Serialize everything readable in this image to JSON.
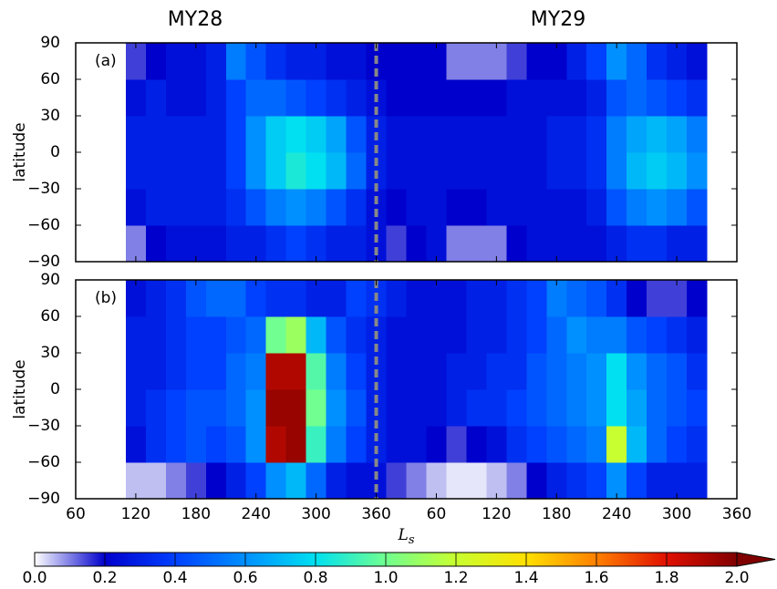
{
  "titles": [
    "MY28",
    "MY29"
  ],
  "chart_data": [
    {
      "type": "heatmap",
      "label": "(a)",
      "ylabel": "latitude",
      "xlim": [
        60,
        720
      ],
      "ylim": [
        -90,
        90
      ],
      "yticks": [
        90,
        60,
        30,
        0,
        {
          "value": -30,
          "label": "−30"
        },
        {
          "value": -60,
          "label": "−60"
        },
        {
          "value": -90,
          "label": "−90"
        }
      ],
      "divider_x": 360,
      "divider_color": "#888888",
      "x_edges": [
        110,
        130,
        150,
        170,
        190,
        210,
        230,
        250,
        270,
        290,
        310,
        330,
        350,
        370,
        390,
        410,
        430,
        450,
        470,
        490,
        510,
        530,
        550,
        570,
        590,
        610,
        630,
        650,
        670,
        690
      ],
      "y_edges": [
        -90,
        -60,
        -30,
        0,
        30,
        60,
        90
      ],
      "z": [
        [
          0.1,
          0.2,
          0.25,
          0.25,
          0.25,
          0.3,
          0.3,
          0.35,
          0.4,
          0.35,
          0.3,
          0.3,
          0.25,
          0.15,
          0.2,
          0.25,
          0.1,
          0.1,
          0.1,
          0.2,
          0.25,
          0.25,
          0.25,
          0.25,
          0.3,
          0.35,
          0.35,
          0.3,
          0.3
        ],
        [
          0.25,
          0.3,
          0.3,
          0.3,
          0.3,
          0.35,
          0.45,
          0.55,
          0.6,
          0.55,
          0.45,
          0.35,
          0.25,
          0.2,
          0.25,
          0.25,
          0.2,
          0.2,
          0.25,
          0.25,
          0.25,
          0.25,
          0.25,
          0.3,
          0.45,
          0.55,
          0.6,
          0.55,
          0.45
        ],
        [
          0.3,
          0.3,
          0.3,
          0.3,
          0.3,
          0.4,
          0.6,
          0.75,
          0.85,
          0.8,
          0.7,
          0.5,
          0.3,
          0.25,
          0.25,
          0.25,
          0.25,
          0.25,
          0.25,
          0.25,
          0.25,
          0.3,
          0.3,
          0.35,
          0.55,
          0.7,
          0.75,
          0.7,
          0.6
        ],
        [
          0.3,
          0.3,
          0.3,
          0.3,
          0.3,
          0.4,
          0.6,
          0.75,
          0.8,
          0.75,
          0.65,
          0.45,
          0.3,
          0.25,
          0.25,
          0.25,
          0.25,
          0.25,
          0.25,
          0.25,
          0.25,
          0.3,
          0.3,
          0.35,
          0.55,
          0.65,
          0.7,
          0.65,
          0.55
        ],
        [
          0.25,
          0.3,
          0.25,
          0.25,
          0.3,
          0.4,
          0.5,
          0.5,
          0.45,
          0.4,
          0.35,
          0.3,
          0.25,
          0.2,
          0.2,
          0.2,
          0.2,
          0.2,
          0.2,
          0.25,
          0.25,
          0.25,
          0.25,
          0.3,
          0.45,
          0.5,
          0.45,
          0.4,
          0.35
        ],
        [
          0.15,
          0.2,
          0.25,
          0.25,
          0.3,
          0.55,
          0.45,
          0.35,
          0.3,
          0.3,
          0.25,
          0.25,
          0.2,
          0.2,
          0.2,
          0.2,
          0.1,
          0.1,
          0.1,
          0.15,
          0.2,
          0.2,
          0.3,
          0.4,
          0.6,
          0.5,
          0.35,
          0.3,
          0.25
        ]
      ]
    },
    {
      "type": "heatmap",
      "label": "(b)",
      "ylabel": "latitude",
      "xlabel": [
        "L",
        "s"
      ],
      "xlim": [
        60,
        720
      ],
      "ylim": [
        -90,
        90
      ],
      "xticks": [
        60,
        120,
        180,
        240,
        300,
        360,
        {
          "value": 420,
          "label": "60"
        },
        {
          "value": 480,
          "label": "120"
        },
        {
          "value": 540,
          "label": "180"
        },
        {
          "value": 600,
          "label": "240"
        },
        {
          "value": 660,
          "label": "300"
        },
        {
          "value": 720,
          "label": "360"
        }
      ],
      "yticks": [
        90,
        60,
        30,
        0,
        {
          "value": -30,
          "label": "−30"
        },
        {
          "value": -60,
          "label": "−60"
        },
        {
          "value": -90,
          "label": "−90"
        }
      ],
      "divider_x": 360,
      "divider_color": "#888888",
      "x_edges": [
        110,
        130,
        150,
        170,
        190,
        210,
        230,
        250,
        270,
        290,
        310,
        330,
        350,
        370,
        390,
        410,
        430,
        450,
        470,
        490,
        510,
        530,
        550,
        570,
        590,
        610,
        630,
        650,
        670,
        690
      ],
      "y_edges": [
        -90,
        -60,
        -30,
        0,
        30,
        60,
        90
      ],
      "z": [
        [
          0.05,
          0.05,
          0.1,
          0.15,
          0.2,
          0.3,
          0.4,
          0.6,
          0.7,
          0.5,
          0.3,
          0.25,
          0.25,
          0.15,
          0.1,
          0.05,
          0.02,
          0.02,
          0.05,
          0.1,
          0.2,
          0.3,
          0.35,
          0.4,
          0.6,
          0.4,
          0.3,
          0.3,
          0.3
        ],
        [
          0.25,
          0.35,
          0.4,
          0.45,
          0.4,
          0.45,
          0.6,
          1.9,
          1.95,
          0.9,
          0.55,
          0.4,
          0.3,
          0.25,
          0.25,
          0.2,
          0.15,
          0.2,
          0.25,
          0.35,
          0.4,
          0.45,
          0.5,
          0.55,
          1.2,
          0.7,
          0.5,
          0.4,
          0.35
        ],
        [
          0.3,
          0.35,
          0.4,
          0.45,
          0.45,
          0.5,
          0.6,
          1.95,
          1.95,
          1.0,
          0.6,
          0.45,
          0.3,
          0.25,
          0.25,
          0.25,
          0.3,
          0.35,
          0.35,
          0.4,
          0.45,
          0.5,
          0.55,
          0.6,
          0.8,
          0.65,
          0.5,
          0.45,
          0.4
        ],
        [
          0.3,
          0.3,
          0.35,
          0.4,
          0.4,
          0.5,
          0.55,
          1.9,
          1.9,
          0.95,
          0.55,
          0.4,
          0.3,
          0.25,
          0.25,
          0.25,
          0.3,
          0.3,
          0.35,
          0.35,
          0.45,
          0.5,
          0.55,
          0.6,
          0.8,
          0.6,
          0.5,
          0.45,
          0.35
        ],
        [
          0.3,
          0.3,
          0.35,
          0.4,
          0.4,
          0.45,
          0.5,
          1.0,
          1.1,
          0.7,
          0.45,
          0.35,
          0.3,
          0.25,
          0.25,
          0.25,
          0.25,
          0.3,
          0.3,
          0.35,
          0.4,
          0.5,
          0.6,
          0.55,
          0.55,
          0.45,
          0.4,
          0.35,
          0.3
        ],
        [
          0.25,
          0.3,
          0.35,
          0.45,
          0.5,
          0.5,
          0.4,
          0.35,
          0.35,
          0.3,
          0.3,
          0.4,
          0.35,
          0.3,
          0.25,
          0.25,
          0.25,
          0.3,
          0.3,
          0.35,
          0.4,
          0.55,
          0.5,
          0.45,
          0.35,
          0.2,
          0.15,
          0.15,
          0.2
        ]
      ]
    }
  ],
  "colorbar": {
    "lim": [
      0,
      2
    ],
    "colors": [
      "#ffffff",
      "#0000cc",
      "#0040ff",
      "#0090ff",
      "#00e0f0",
      "#70ff90",
      "#c8ff30",
      "#ffe000",
      "#ff8000",
      "#e01000",
      "#800000"
    ],
    "ticks": [
      {
        "value": 0,
        "label": "0.0"
      },
      {
        "value": 0.2,
        "label": "0.2"
      },
      {
        "value": 0.4,
        "label": "0.4"
      },
      {
        "value": 0.6,
        "label": "0.6"
      },
      {
        "value": 0.8,
        "label": "0.8"
      },
      {
        "value": 1,
        "label": "1.0"
      },
      {
        "value": 1.2,
        "label": "1.2"
      },
      {
        "value": 1.4,
        "label": "1.4"
      },
      {
        "value": 1.6,
        "label": "1.6"
      },
      {
        "value": 1.8,
        "label": "1.8"
      },
      {
        "value": 2,
        "label": "2.0"
      }
    ]
  }
}
